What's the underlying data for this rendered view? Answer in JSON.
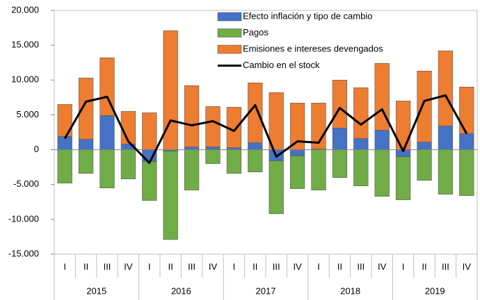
{
  "chart_data": {
    "type": "bar",
    "stacked": true,
    "categories": [
      "I",
      "II",
      "III",
      "IV",
      "I",
      "II",
      "III",
      "IV",
      "I",
      "II",
      "III",
      "IV",
      "I",
      "II",
      "III",
      "IV",
      "I",
      "II",
      "III",
      "IV"
    ],
    "years": [
      "2015",
      "2016",
      "2017",
      "2018",
      "2019"
    ],
    "series": [
      {
        "name": "Efecto inflación y tipo de cambio",
        "color": "#4472c4",
        "type": "bar",
        "values": [
          1900,
          1500,
          4900,
          800,
          -1700,
          -200,
          400,
          400,
          300,
          1000,
          -1600,
          -900,
          100,
          3100,
          1600,
          2800,
          -1000,
          1100,
          3400,
          2300
        ]
      },
      {
        "name": "Pagos",
        "color": "#70ad47",
        "type": "bar",
        "values": [
          -4800,
          -3400,
          -5500,
          -4200,
          -5600,
          -12700,
          -5800,
          -2000,
          -3400,
          -3200,
          -7600,
          -4700,
          -5800,
          -4000,
          -5200,
          -6700,
          -6200,
          -4400,
          -6400,
          -6600
        ]
      },
      {
        "name": "Emisiones e intereses devengados",
        "color": "#ed7d31",
        "type": "bar",
        "values": [
          4600,
          8800,
          8300,
          4700,
          5300,
          17100,
          8800,
          5800,
          5800,
          8600,
          8200,
          6700,
          6600,
          6900,
          7300,
          9600,
          7000,
          10200,
          10800,
          6700
        ]
      },
      {
        "name": "Cambio en el stock",
        "color": "#000000",
        "type": "line",
        "values": [
          1600,
          6900,
          7600,
          1200,
          -1900,
          4200,
          3500,
          4100,
          2700,
          6400,
          -1000,
          1200,
          1000,
          6000,
          3600,
          5800,
          -200,
          7000,
          7800,
          2300
        ]
      }
    ],
    "ylim": [
      -15000,
      20000
    ],
    "yticks": [
      {
        "value": -15000,
        "label": "-15.000"
      },
      {
        "value": -10000,
        "label": "-10.000"
      },
      {
        "value": -5000,
        "label": "-5.000"
      },
      0,
      {
        "value": 5000,
        "label": "5.000"
      },
      {
        "value": 10000,
        "label": "10.000"
      },
      {
        "value": 15000,
        "label": "15.000"
      },
      {
        "value": 20000,
        "label": "20.000"
      }
    ],
    "grid": false,
    "legend": "top"
  }
}
